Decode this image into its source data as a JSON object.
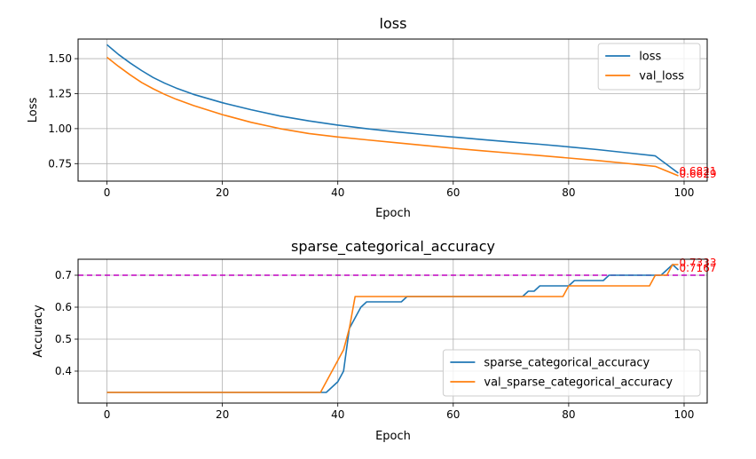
{
  "chart_data": [
    {
      "type": "line",
      "title": "loss",
      "xlabel": "Epoch",
      "ylabel": "Loss",
      "xlim": [
        -5,
        104
      ],
      "ylim": [
        0.625,
        1.64
      ],
      "grid": true,
      "legend": "top-right",
      "x_ticks": [
        0,
        20,
        40,
        60,
        80,
        100
      ],
      "y_ticks": [
        0.75,
        1.0,
        1.25,
        1.5
      ],
      "y_tick_labels": [
        "0.75",
        "1.00",
        "1.25",
        "1.50"
      ],
      "x_tick_labels": [
        "0",
        "20",
        "40",
        "60",
        "80",
        "100"
      ],
      "series": [
        {
          "name": "loss",
          "color": "#1f77b4",
          "x": [
            0,
            2,
            4,
            6,
            8,
            10,
            12,
            15,
            20,
            25,
            30,
            35,
            40,
            45,
            50,
            55,
            60,
            65,
            70,
            75,
            80,
            85,
            90,
            95,
            99
          ],
          "values": [
            1.6,
            1.53,
            1.47,
            1.415,
            1.365,
            1.325,
            1.29,
            1.245,
            1.185,
            1.135,
            1.09,
            1.055,
            1.025,
            1.0,
            0.978,
            0.958,
            0.94,
            0.922,
            0.905,
            0.888,
            0.87,
            0.85,
            0.828,
            0.805,
            0.6821
          ]
        },
        {
          "name": "val_loss",
          "color": "#ff7f0e",
          "x": [
            0,
            2,
            4,
            6,
            8,
            10,
            12,
            15,
            20,
            25,
            30,
            35,
            40,
            45,
            50,
            55,
            60,
            65,
            70,
            75,
            80,
            85,
            90,
            95,
            99
          ],
          "values": [
            1.51,
            1.445,
            1.385,
            1.33,
            1.285,
            1.245,
            1.21,
            1.165,
            1.1,
            1.045,
            1.0,
            0.965,
            0.94,
            0.92,
            0.9,
            0.88,
            0.86,
            0.842,
            0.825,
            0.808,
            0.79,
            0.772,
            0.752,
            0.73,
            0.6629
          ]
        }
      ],
      "annotations": [
        {
          "text": "0.6821",
          "x": 99,
          "y": 0.6821,
          "color": "#ff0000"
        },
        {
          "text": "0.6629",
          "x": 99,
          "y": 0.6629,
          "color": "#ff0000"
        }
      ]
    },
    {
      "type": "line",
      "title": "sparse_categorical_accuracy",
      "xlabel": "Epoch",
      "ylabel": "Accuracy",
      "xlim": [
        -5,
        104
      ],
      "ylim": [
        0.3,
        0.75
      ],
      "grid": true,
      "legend": "bottom-right",
      "x_ticks": [
        0,
        20,
        40,
        60,
        80,
        100
      ],
      "y_ticks": [
        0.4,
        0.5,
        0.6,
        0.7
      ],
      "y_tick_labels": [
        "0.4",
        "0.5",
        "0.6",
        "0.7"
      ],
      "x_tick_labels": [
        "0",
        "20",
        "40",
        "60",
        "80",
        "100"
      ],
      "reference_line": {
        "y": 0.7,
        "color": "#bf00bf",
        "style": "dashed"
      },
      "series": [
        {
          "name": "sparse_categorical_accuracy",
          "color": "#1f77b4",
          "x": [
            0,
            38,
            39,
            40,
            41,
            42,
            43,
            44,
            45,
            46,
            47,
            48,
            49,
            50,
            51,
            52,
            53,
            54,
            55,
            56,
            57,
            58,
            59,
            60,
            62,
            64,
            66,
            68,
            70,
            71,
            72,
            73,
            74,
            75,
            76,
            77,
            78,
            79,
            80,
            81,
            82,
            83,
            84,
            85,
            86,
            87,
            88,
            89,
            90,
            91,
            92,
            93,
            94,
            95,
            96,
            97,
            98,
            99
          ],
          "values": [
            0.3333,
            0.3333,
            0.35,
            0.3667,
            0.4,
            0.5333,
            0.5667,
            0.6,
            0.6167,
            0.6167,
            0.6167,
            0.6167,
            0.6167,
            0.6167,
            0.6167,
            0.6333,
            0.6333,
            0.6333,
            0.6333,
            0.6333,
            0.6333,
            0.6333,
            0.6333,
            0.6333,
            0.6333,
            0.6333,
            0.6333,
            0.6333,
            0.6333,
            0.6333,
            0.6333,
            0.65,
            0.65,
            0.6667,
            0.6667,
            0.6667,
            0.6667,
            0.6667,
            0.6667,
            0.6833,
            0.6833,
            0.6833,
            0.6833,
            0.6833,
            0.6833,
            0.7,
            0.7,
            0.7,
            0.7,
            0.7,
            0.7,
            0.7,
            0.7,
            0.7,
            0.7,
            0.7167,
            0.7333,
            0.7167
          ]
        },
        {
          "name": "val_sparse_categorical_accuracy",
          "color": "#ff7f0e",
          "x": [
            0,
            37,
            38,
            39,
            40,
            41,
            42,
            43,
            44,
            78,
            79,
            80,
            94,
            95,
            96,
            97,
            98,
            99
          ],
          "values": [
            0.3333,
            0.3333,
            0.3667,
            0.4,
            0.4333,
            0.4667,
            0.5333,
            0.6333,
            0.6333,
            0.6333,
            0.6333,
            0.6667,
            0.6667,
            0.7,
            0.7,
            0.7,
            0.7333,
            0.7333
          ]
        }
      ],
      "annotations": [
        {
          "text": "0.7333",
          "x": 99,
          "y": 0.7333,
          "color": "#ff0000"
        },
        {
          "text": "0.7167",
          "x": 99,
          "y": 0.7167,
          "color": "#ff0000"
        }
      ]
    }
  ]
}
